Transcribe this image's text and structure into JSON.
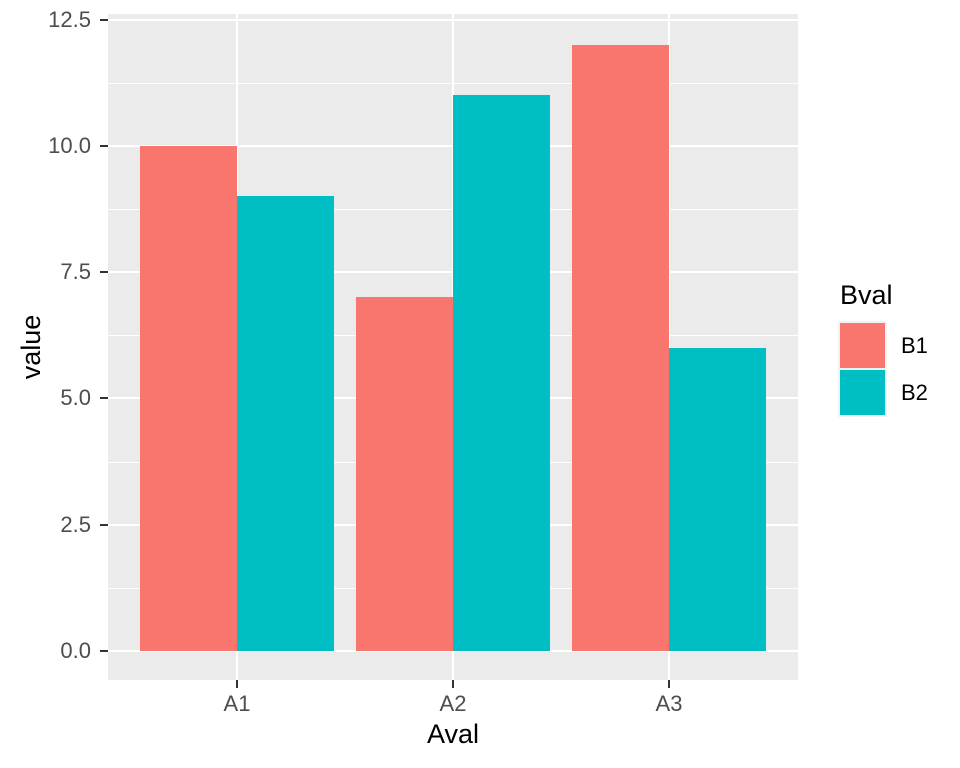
{
  "chart_data": {
    "type": "bar",
    "grouping": "dodged",
    "title": "",
    "xlabel": "Aval",
    "ylabel": "value",
    "categories": [
      "A1",
      "A2",
      "A3"
    ],
    "series": [
      {
        "name": "B1",
        "color": "#F8766D",
        "values": [
          10,
          7,
          12
        ]
      },
      {
        "name": "B2",
        "color": "#00BFC4",
        "values": [
          9,
          11,
          6
        ]
      }
    ],
    "ylim": [
      0,
      12.5
    ],
    "y_ticks": [
      "0.0",
      "2.5",
      "5.0",
      "7.5",
      "10.0",
      "12.5"
    ],
    "legend": {
      "title": "Bval",
      "position": "right"
    },
    "grid": {
      "major": true,
      "minor": true,
      "color": "#FFFFFF"
    },
    "colors": {
      "panel_background": "#EBEBEB",
      "gridline": "#FFFFFF",
      "axis_text": "#4D4D4D",
      "tick_mark": "#333333",
      "axis_title": "#000000",
      "legend_key_background": "#F2F2F2"
    }
  }
}
